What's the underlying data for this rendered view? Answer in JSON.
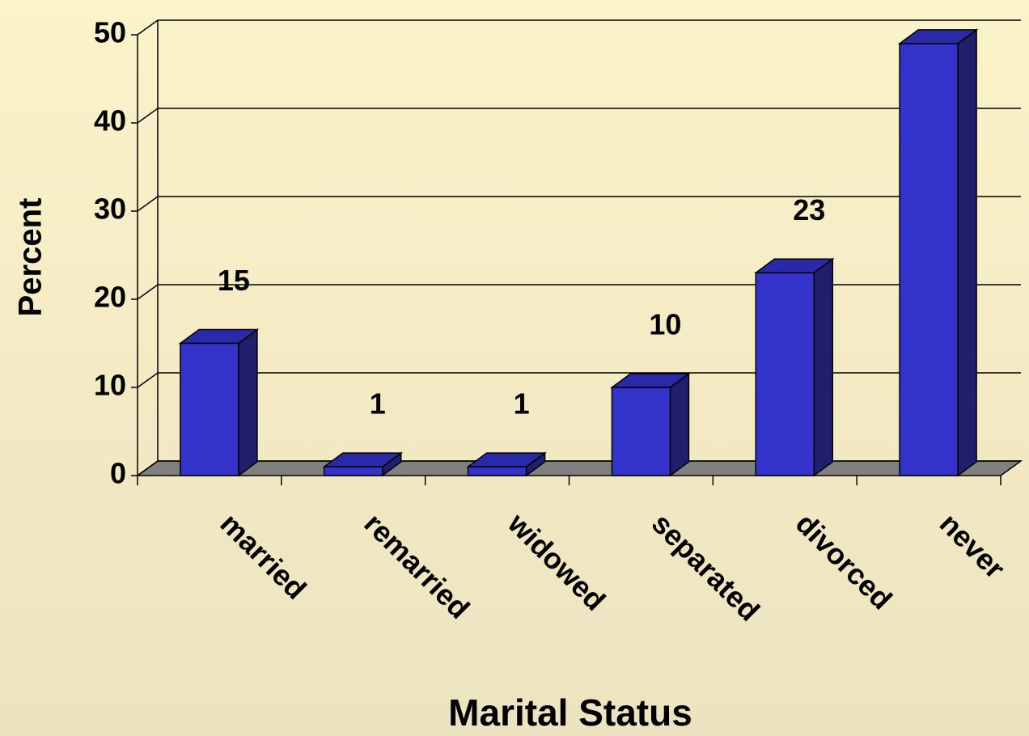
{
  "chart_data": {
    "type": "bar3d",
    "x_label": "Marital Status",
    "y_label": "Percent",
    "categories": [
      "married",
      "remarried",
      "widowed",
      "separated",
      "divorced",
      "never"
    ],
    "values": [
      15,
      1,
      1,
      10,
      23,
      49
    ],
    "color": "#3333cc",
    "ylim": [
      0,
      50
    ],
    "yticks": [
      0,
      10,
      20,
      30,
      40,
      50
    ],
    "grid": true
  }
}
